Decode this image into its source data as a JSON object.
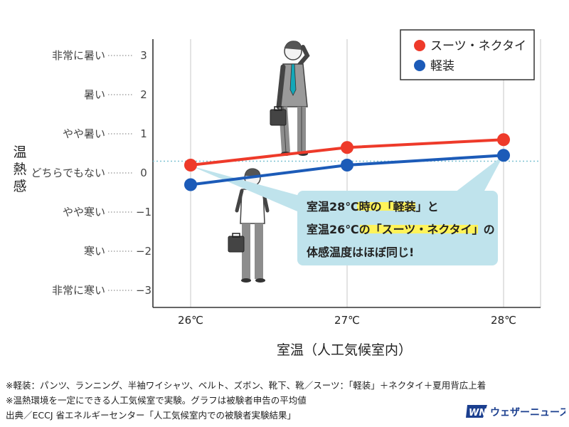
{
  "chart_data": {
    "type": "line",
    "categories": [
      "26℃",
      "27℃",
      "28℃"
    ],
    "x": [
      26,
      27,
      28
    ],
    "xlabel": "室温（人工気候室内）",
    "ylabel": "温熱感",
    "ylim": [
      -3,
      3
    ],
    "y_ticks": [
      "3",
      "2",
      "1",
      "0",
      "−1",
      "−2",
      "−3"
    ],
    "y_level_labels": [
      "非常に暑い",
      "暑い",
      "やや暑い",
      "どちらでもない",
      "やや寒い",
      "寒い",
      "非常に寒い"
    ],
    "grid": true,
    "legend": "top-right",
    "reference_line_y": 0.3,
    "series": [
      {
        "name": "スーツ・ネクタイ",
        "color": "#ee3a2a",
        "values": [
          0.2,
          0.65,
          0.85
        ]
      },
      {
        "name": "軽装",
        "color": "#1c5bb8",
        "values": [
          -0.3,
          0.2,
          0.45
        ]
      }
    ],
    "annotation": {
      "lines": [
        "室温28℃時の「軽装」と",
        "室温26℃の「スーツ・ネクタイ」の",
        "体感温度はほぼ同じ!"
      ],
      "box_color": "#bfe3ec",
      "highlight_color": "#fff35a"
    }
  },
  "footnotes": [
    "※軽装：パンツ、ランニング、半袖ワイシャツ、ベルト、ズボン、靴下、靴／スーツ：「軽装」＋ネクタイ＋夏用背広上着",
    "※温熱環境を一定にできる人工気候室で実験。グラフは被験者申告の平均値",
    "出典／ECCJ 省エネルギーセンター「人工気候室内での被験者実験結果」"
  ],
  "brand": {
    "logo_mark": "WN",
    "name": "ウェザーニュース"
  },
  "colors": {
    "grid": "#d0d0d0",
    "axis": "#333333",
    "logo": "#1b3f8f"
  }
}
